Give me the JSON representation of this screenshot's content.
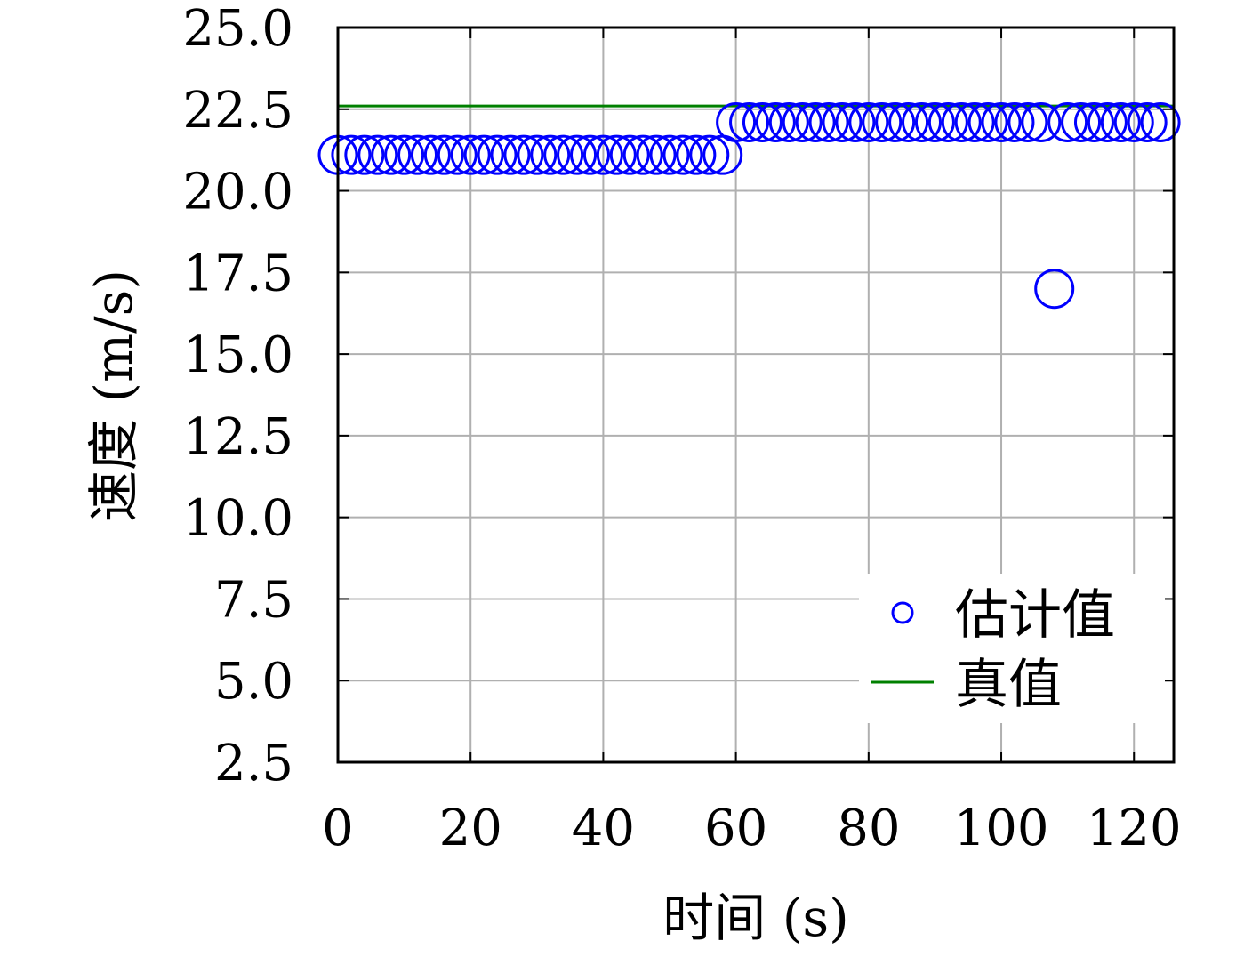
{
  "chart_data": {
    "type": "scatter",
    "xlabel": "时间 (s)",
    "ylabel": "速度 (m/s)",
    "xlim": [
      0,
      126
    ],
    "ylim": [
      2.5,
      25.0
    ],
    "xticks": [
      0,
      20,
      40,
      60,
      80,
      100,
      120
    ],
    "xtick_labels": [
      "0",
      "20",
      "40",
      "60",
      "80",
      "100",
      "120"
    ],
    "yticks": [
      2.5,
      5.0,
      7.5,
      10.0,
      12.5,
      15.0,
      17.5,
      20.0,
      22.5,
      25.0
    ],
    "ytick_labels": [
      "2.5",
      "5.0",
      "7.5",
      "10.0",
      "12.5",
      "15.0",
      "17.5",
      "20.0",
      "22.5",
      "25.0"
    ],
    "grid": true,
    "legend_position": "bottom-right",
    "colors": {
      "estimate": "#0000ff",
      "truth": "#008000",
      "grid": "#b0b0b0",
      "axes": "#000000"
    },
    "series": [
      {
        "name": "估计值",
        "kind": "scatter",
        "marker": "open-circle",
        "x": [
          0,
          2,
          4,
          6,
          8,
          10,
          12,
          14,
          16,
          18,
          20,
          22,
          24,
          26,
          28,
          30,
          32,
          34,
          36,
          38,
          40,
          42,
          44,
          46,
          48,
          50,
          52,
          54,
          56,
          58,
          60,
          62,
          64,
          66,
          68,
          70,
          72,
          74,
          76,
          78,
          80,
          82,
          84,
          86,
          88,
          90,
          92,
          94,
          96,
          98,
          100,
          102,
          104,
          106,
          108,
          110,
          112,
          114,
          116,
          118,
          120,
          122,
          124
        ],
        "y": [
          21.1,
          21.1,
          21.1,
          21.1,
          21.1,
          21.1,
          21.1,
          21.1,
          21.1,
          21.1,
          21.1,
          21.1,
          21.1,
          21.1,
          21.1,
          21.1,
          21.1,
          21.1,
          21.1,
          21.1,
          21.1,
          21.1,
          21.1,
          21.1,
          21.1,
          21.1,
          21.1,
          21.1,
          21.1,
          21.1,
          22.1,
          22.1,
          22.1,
          22.1,
          22.1,
          22.1,
          22.1,
          22.1,
          22.1,
          22.1,
          22.1,
          22.1,
          22.1,
          22.1,
          22.1,
          22.1,
          22.1,
          22.1,
          22.1,
          22.1,
          22.1,
          22.1,
          22.1,
          22.1,
          17.0,
          22.1,
          22.1,
          22.1,
          22.1,
          22.1,
          22.1,
          22.1,
          22.1
        ]
      },
      {
        "name": "真值",
        "kind": "line",
        "x": [
          0,
          126
        ],
        "y": [
          22.6,
          22.6
        ]
      }
    ]
  }
}
